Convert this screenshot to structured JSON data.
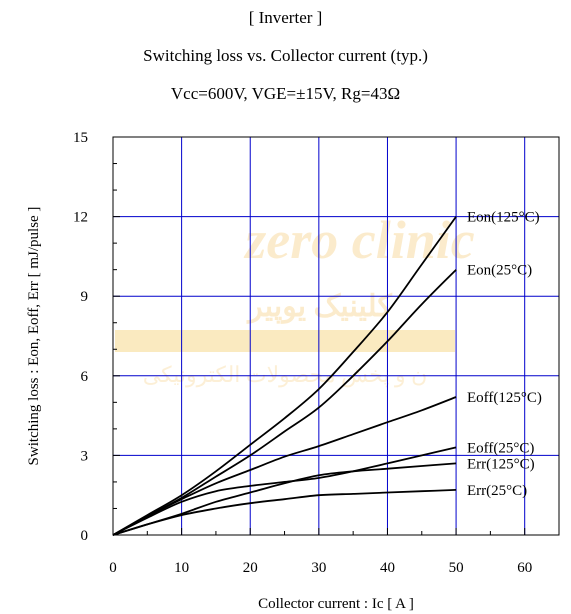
{
  "chart_data": {
    "type": "line",
    "title": "[ Inverter ]",
    "subtitle": "Switching loss  vs.  Collector current  (typ.)",
    "conditions": "Vcc=600V, VGE=±15V, Rg=43Ω",
    "xlabel": "Collector current : Ic  [ A ]",
    "ylabel": "Switching loss : Eon, Eoff, Err  [ mJ/pulse ]",
    "xlim": [
      0,
      65
    ],
    "ylim": [
      0,
      15
    ],
    "xticks": [
      0,
      10,
      20,
      30,
      40,
      50,
      60
    ],
    "yticks": [
      0,
      3,
      6,
      9,
      12,
      15
    ],
    "grid": true,
    "legend": "inline-right",
    "series": [
      {
        "name": "Eon(125°C)",
        "x": [
          0,
          5,
          10,
          15,
          20,
          25,
          30,
          35,
          40,
          45,
          50
        ],
        "y": [
          0,
          0.75,
          1.5,
          2.4,
          3.4,
          4.4,
          5.5,
          6.9,
          8.4,
          10.2,
          12.0
        ]
      },
      {
        "name": "Eon(25°C)",
        "x": [
          0,
          5,
          10,
          15,
          20,
          25,
          30,
          35,
          40,
          45,
          50
        ],
        "y": [
          0,
          0.7,
          1.4,
          2.2,
          3.0,
          3.9,
          4.8,
          6.0,
          7.3,
          8.7,
          10.0
        ]
      },
      {
        "name": "Eoff(125°C)",
        "x": [
          0,
          5,
          10,
          15,
          20,
          25,
          30,
          35,
          40,
          45,
          50
        ],
        "y": [
          0,
          0.7,
          1.35,
          1.95,
          2.45,
          2.95,
          3.35,
          3.8,
          4.25,
          4.7,
          5.2
        ]
      },
      {
        "name": "Eoff(25°C)",
        "x": [
          0,
          5,
          10,
          15,
          20,
          25,
          30,
          35,
          40,
          45,
          50
        ],
        "y": [
          0,
          0.65,
          1.25,
          1.65,
          1.85,
          2.0,
          2.15,
          2.4,
          2.7,
          3.0,
          3.3
        ]
      },
      {
        "name": "Err(125°C)",
        "x": [
          0,
          5,
          10,
          15,
          20,
          25,
          30,
          35,
          40,
          45,
          50
        ],
        "y": [
          0,
          0.4,
          0.8,
          1.25,
          1.6,
          1.95,
          2.25,
          2.4,
          2.5,
          2.6,
          2.7
        ]
      },
      {
        "name": "Err(25°C)",
        "x": [
          0,
          5,
          10,
          15,
          20,
          25,
          30,
          35,
          40,
          45,
          50
        ],
        "y": [
          0,
          0.4,
          0.75,
          1.0,
          1.2,
          1.35,
          1.5,
          1.55,
          1.6,
          1.65,
          1.7
        ]
      }
    ]
  },
  "watermark": {
    "line1": "zero clinic",
    "line2": "کلینیک یوپیر",
    "line3": "ن و پخش محصولات الکترونیکی"
  },
  "colors": {
    "grid": "#0000cc",
    "curve": "#000000",
    "axis": "#000000",
    "watermark": "#f2b84a"
  }
}
